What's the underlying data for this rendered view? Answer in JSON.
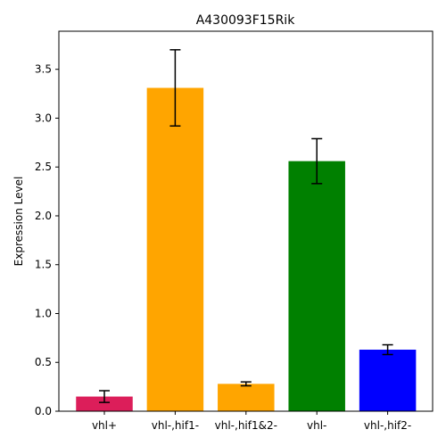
{
  "chart_data": {
    "type": "bar",
    "title": "A430093F15Rik",
    "xlabel": "",
    "ylabel": "Expression Level",
    "categories": [
      "vhl+",
      "vhl-,hif1-",
      "vhl-,hif1&2-",
      "vhl-",
      "vhl-,hif2-"
    ],
    "values": [
      0.15,
      3.31,
      0.28,
      2.56,
      0.63
    ],
    "errors": [
      0.06,
      0.39,
      0.02,
      0.23,
      0.05
    ],
    "colors": [
      "#dc1e5a",
      "#ffa500",
      "#ffa500",
      "#008000",
      "#0000ff"
    ],
    "ylim": [
      0,
      3.89
    ],
    "yticks": [
      0.0,
      0.5,
      1.0,
      1.5,
      2.0,
      2.5,
      3.0,
      3.5
    ],
    "ytick_labels": [
      "0.0",
      "0.5",
      "1.0",
      "1.5",
      "2.0",
      "2.5",
      "3.0",
      "3.5"
    ],
    "grid": false,
    "legend": "none"
  }
}
